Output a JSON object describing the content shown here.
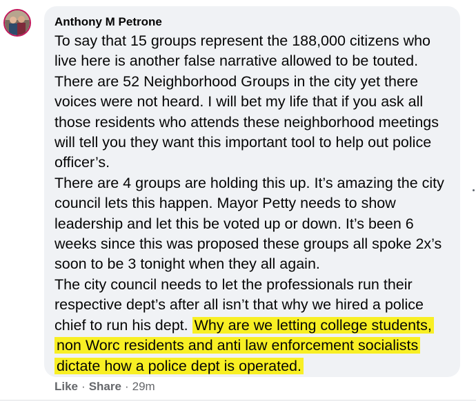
{
  "comment": {
    "author": "Anthony M Petrone",
    "paragraphs": [
      {
        "text": "To say that 15 groups represent the 188,000 citizens who live here is another false narrative allowed to be touted. There are 52 Neighborhood Groups in the city yet there voices were not heard. I will bet my life that if you ask all those residents who attends these neighborhood meetings will tell you they want this important tool to help out police officer’s.",
        "highlight": ""
      },
      {
        "text": "There are 4 groups are holding this up. It’s amazing the city council lets this happen. Mayor Petty needs to show leadership and let this be voted up or down. It’s been 6 weeks since this was proposed these groups all spoke 2x’s soon to be 3 tonight when they all again.",
        "highlight": ""
      },
      {
        "text": "The city council needs to let the professionals run their respective dept’s after all isn’t that why we hired a police chief to run his dept.",
        "highlight": "Why are we letting college students, non Worc residents and anti law enforcement socialists dictate how a police dept is operated."
      }
    ]
  },
  "actions": {
    "like_label": "Like",
    "separator": "·",
    "share_label": "Share",
    "timestamp": "29m"
  },
  "colors": {
    "bubble": "#f0f2f5",
    "highlight": "#f8ef24",
    "meta_text": "#65676b"
  }
}
